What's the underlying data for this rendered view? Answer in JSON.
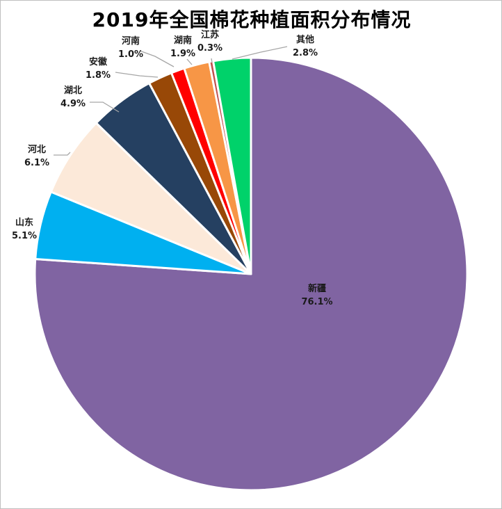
{
  "chart_data": {
    "type": "pie",
    "title": "2019年全国棉花种植面积分布情况",
    "slices": [
      {
        "name": "新疆",
        "value": 76.1,
        "label": "76.1%",
        "color": "#8064A2"
      },
      {
        "name": "山东",
        "value": 5.1,
        "label": "5.1%",
        "color": "#00B0F0"
      },
      {
        "name": "河北",
        "value": 6.1,
        "label": "6.1%",
        "color": "#FCE9D9"
      },
      {
        "name": "湖北",
        "value": 4.9,
        "label": "4.9%",
        "color": "#254061"
      },
      {
        "name": "安徽",
        "value": 1.8,
        "label": "1.8%",
        "color": "#984807"
      },
      {
        "name": "河南",
        "value": 1.0,
        "label": "1.0%",
        "color": "#FF0000"
      },
      {
        "name": "湖南",
        "value": 1.9,
        "label": "1.9%",
        "color": "#F79646"
      },
      {
        "name": "江苏",
        "value": 0.3,
        "label": "0.3%",
        "color": "#C0504D"
      },
      {
        "name": "其他",
        "value": 2.8,
        "label": "2.8%",
        "color": "#00D26A"
      }
    ],
    "slice_border_color": "#FFFFFF",
    "leader_line_color": "#A6A6A6"
  }
}
